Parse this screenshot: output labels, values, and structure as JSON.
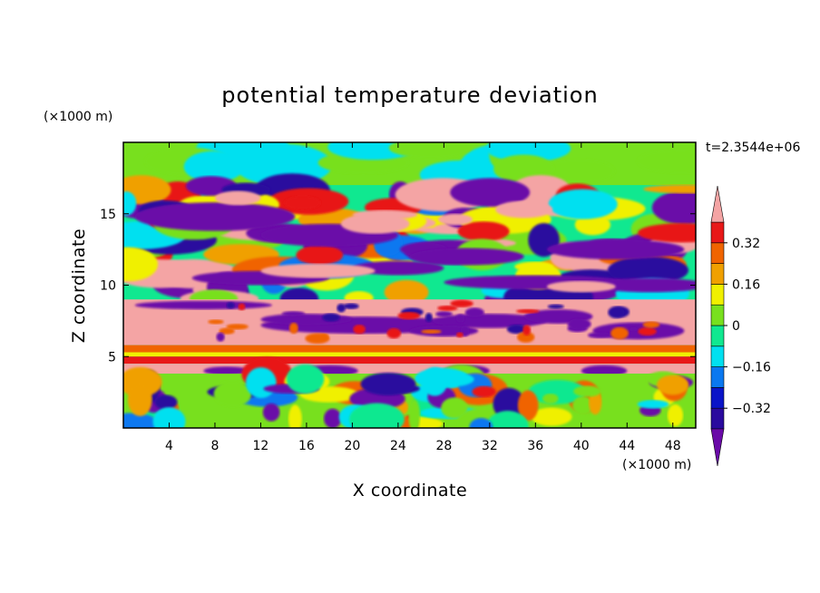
{
  "chart_data": {
    "type": "heatmap",
    "title": "potential temperature deviation",
    "xlabel": "X coordinate",
    "ylabel": "Z coordinate",
    "x_unit": "(×1000 m)",
    "y_unit": "(×1000 m)",
    "time_label": "t=2.3544e+06",
    "xlim": [
      0,
      50
    ],
    "ylim": [
      0,
      20
    ],
    "x_ticks": [
      4,
      8,
      12,
      16,
      20,
      24,
      28,
      32,
      36,
      40,
      44,
      48
    ],
    "y_ticks": [
      5,
      10,
      15
    ],
    "colorbar": {
      "levels": [
        -0.4,
        -0.32,
        -0.24,
        -0.16,
        -0.08,
        0,
        0.08,
        0.16,
        0.24,
        0.32,
        0.4
      ],
      "labels": [
        "0.32",
        "0.16",
        "0",
        "−0.16",
        "−0.32"
      ],
      "colors": [
        "#6a0aa8",
        "#2a0a9e",
        "#0a14c8",
        "#0a78f0",
        "#00e0f0",
        "#10e890",
        "#78e01e",
        "#f0f000",
        "#f0a000",
        "#f06400",
        "#e81818",
        "#f4a4a4"
      ],
      "extend": "both"
    },
    "bands": [
      {
        "z_range": [
          0,
          3.8
        ],
        "pattern": "mixed convective cells, mostly green/cyan with scattered red, orange and purple"
      },
      {
        "z_range": [
          3.8,
          4.5
        ],
        "pattern": "pink band with purple bumps"
      },
      {
        "z_range": [
          4.5,
          5.8
        ],
        "pattern": "yellow/orange/red horizontal stripes"
      },
      {
        "z_range": [
          5.8,
          9.0
        ],
        "pattern": "pink layer with irregular purple filaments"
      },
      {
        "z_range": [
          9.0,
          17.0
        ],
        "pattern": "mixed purple, red, pink, yellow and cyan eddies"
      },
      {
        "z_range": [
          17.0,
          20.0
        ],
        "pattern": "green/cyan upper region"
      }
    ]
  }
}
